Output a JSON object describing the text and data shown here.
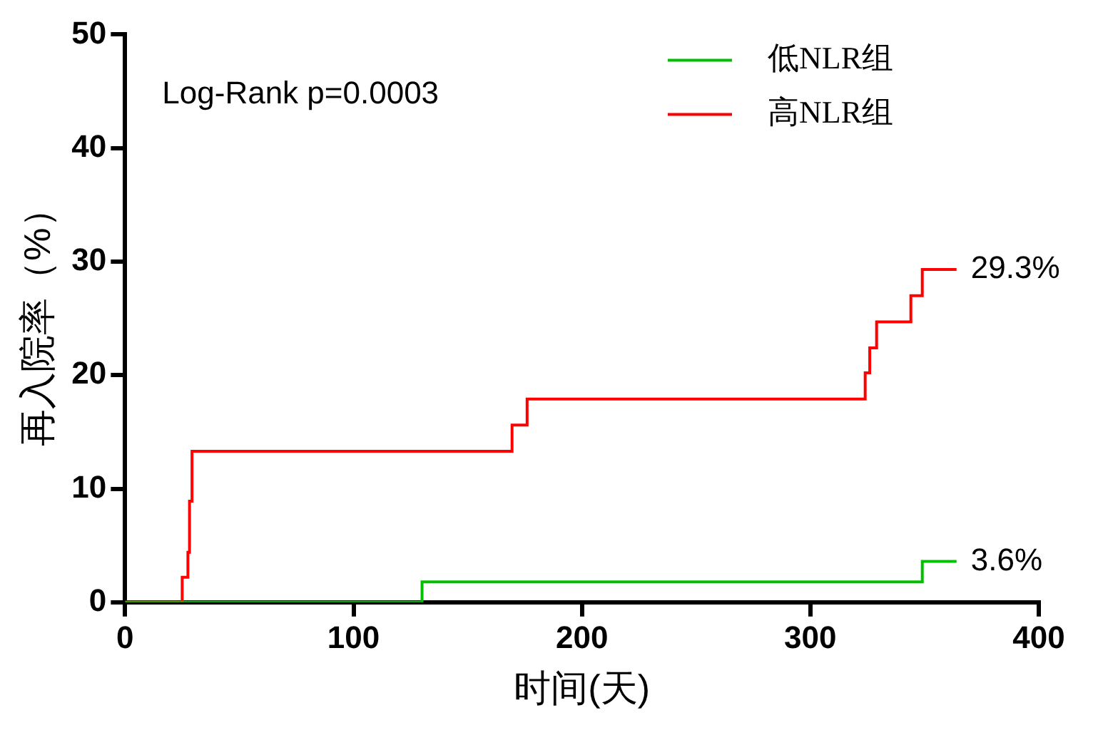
{
  "chart_data": {
    "type": "step",
    "xlabel": "时间(天)",
    "ylabel": "再入院率（%）",
    "xlim": [
      0,
      400
    ],
    "xticks": [
      0,
      100,
      200,
      300,
      400
    ],
    "ylim": [
      0,
      50
    ],
    "yticks": [
      0,
      10,
      20,
      30,
      40,
      50
    ],
    "grid": false,
    "legend": "top right",
    "annotations": [
      "Log-Rank p=0.0003",
      {
        "text": "29.3%",
        "x": 364,
        "y": 29.3
      },
      {
        "text": "3.6%",
        "x": 364,
        "y": 3.6
      }
    ],
    "series": [
      {
        "name": "低NLR组",
        "color": "#00c000",
        "x": [
          0,
          130,
          349,
          364
        ],
        "values": [
          0,
          1.8,
          3.6,
          3.6
        ]
      },
      {
        "name": "高NLR组",
        "color": "#ff0000",
        "x": [
          0,
          25,
          27.5,
          28.2,
          29.3,
          169.4,
          176,
          324,
          326,
          329,
          344,
          349,
          364
        ],
        "values": [
          0,
          2.2,
          4.4,
          8.9,
          13.3,
          15.6,
          17.9,
          20.2,
          22.4,
          24.7,
          27,
          29.3,
          29.3
        ]
      }
    ]
  }
}
